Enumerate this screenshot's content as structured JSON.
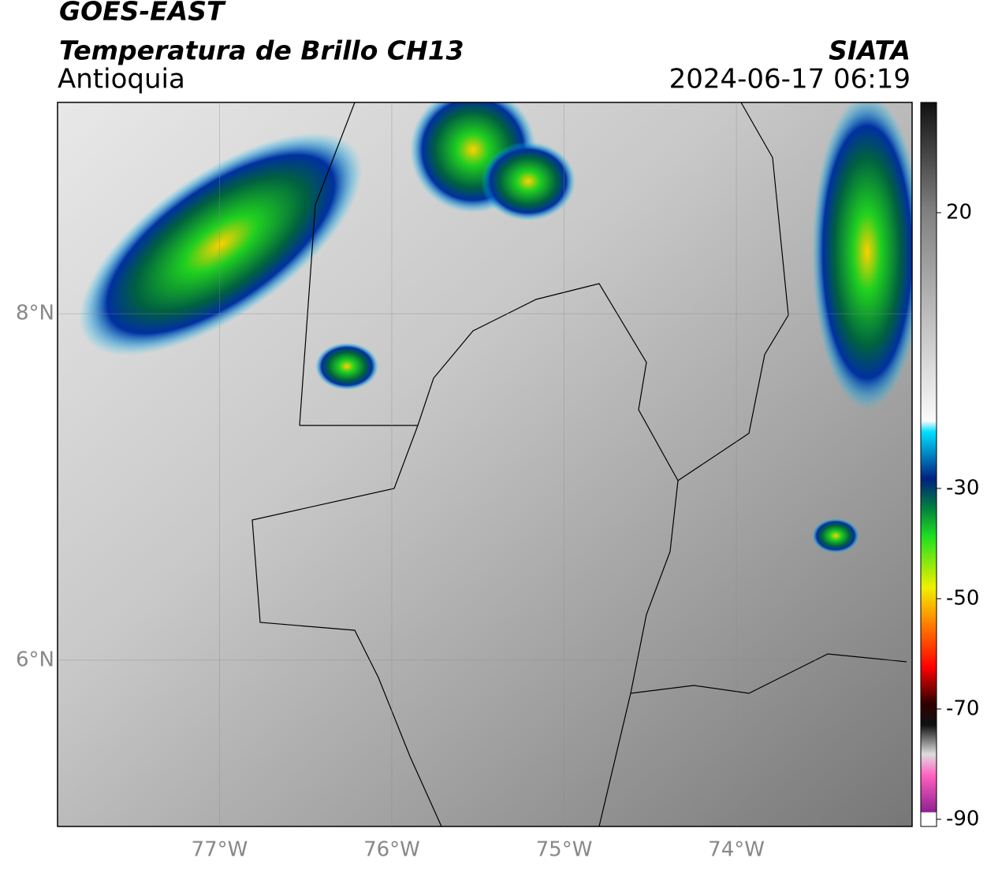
{
  "header": {
    "satellite": "GOES-EAST",
    "product": "Temperatura de Brillo CH13",
    "region": "Antioquia",
    "source": "SIATA",
    "timestamp": "2024-06-17 06:19"
  },
  "map": {
    "lonlim": [
      -77.94,
      -72.98
    ],
    "latlim": [
      5.04,
      9.22
    ],
    "lon_ticks": [
      {
        "value": -77,
        "label": "77°W"
      },
      {
        "value": -76,
        "label": "76°W"
      },
      {
        "value": -75,
        "label": "75°W"
      },
      {
        "value": -74,
        "label": "74°W"
      }
    ],
    "lat_ticks": [
      {
        "value": 8,
        "label": "8°N"
      },
      {
        "value": 6,
        "label": "6°N"
      }
    ]
  },
  "colorbar": {
    "lim": [
      -91.3,
      40
    ],
    "ticks": [
      20,
      -30,
      -50,
      -70,
      -90
    ]
  }
}
